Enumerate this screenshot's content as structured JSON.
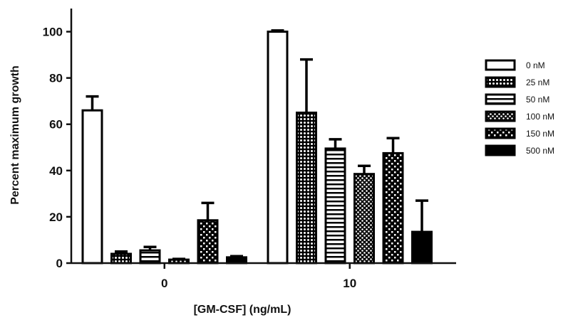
{
  "chart_data": {
    "type": "bar",
    "xlabel": "[GM-CSF] (ng/mL)",
    "ylabel": "Percent maximum growth",
    "ylim": [
      0,
      110
    ],
    "yticks": [
      "0",
      "20",
      "40",
      "60",
      "80",
      "100"
    ],
    "categories": [
      "0",
      "10"
    ],
    "legend_position": "right",
    "series": [
      {
        "name": "0 nM",
        "pattern": "open",
        "values": [
          66,
          100
        ],
        "errors": [
          6,
          0.5
        ]
      },
      {
        "name": "25 nM",
        "pattern": "dots-dense",
        "values": [
          4,
          65
        ],
        "errors": [
          1,
          23
        ]
      },
      {
        "name": "50 nM",
        "pattern": "h-stripes",
        "values": [
          5.5,
          49.5
        ],
        "errors": [
          1.5,
          4
        ]
      },
      {
        "name": "100 nM",
        "pattern": "diag-dots",
        "values": [
          1.5,
          38.5
        ],
        "errors": [
          0.3,
          3.5
        ]
      },
      {
        "name": "150 nM",
        "pattern": "checker",
        "values": [
          18.5,
          47.5
        ],
        "errors": [
          7.5,
          6.5
        ]
      },
      {
        "name": "500 nM",
        "pattern": "solid",
        "values": [
          2.5,
          13.5
        ],
        "errors": [
          0.5,
          13.5
        ]
      }
    ]
  }
}
